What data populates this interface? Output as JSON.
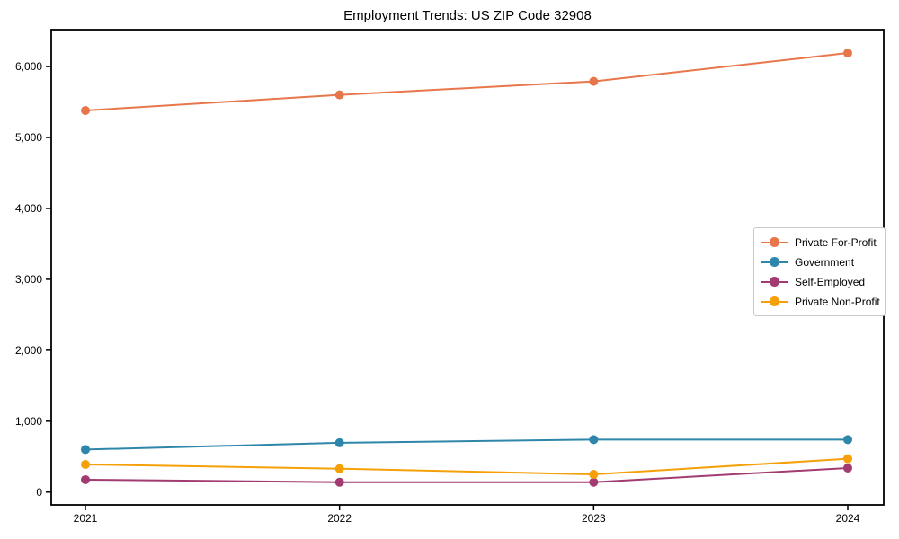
{
  "chart_data": {
    "type": "line",
    "title": "Employment Trends: US ZIP Code 32908",
    "categories": [
      "2021",
      "2022",
      "2023",
      "2024"
    ],
    "x": [
      2021,
      2022,
      2023,
      2024
    ],
    "series": [
      {
        "name": "Private For-Profit",
        "color": "#E8764B",
        "values": [
          5380,
          5600,
          5790,
          6190
        ]
      },
      {
        "name": "Government",
        "color": "#2E86AB",
        "values": [
          600,
          695,
          740,
          740
        ]
      },
      {
        "name": "Self-Employed",
        "color": "#A23B72",
        "values": [
          175,
          140,
          140,
          340
        ]
      },
      {
        "name": "Private Non-Profit",
        "color": "#F5A008",
        "values": [
          390,
          330,
          250,
          470
        ]
      }
    ],
    "xlabel": "",
    "ylabel": "",
    "ylim": [
      -180,
      6520
    ],
    "y_ticks": [
      0,
      1000,
      2000,
      3000,
      4000,
      5000,
      6000
    ],
    "y_tick_labels": [
      "0",
      "1,000",
      "2,000",
      "3,000",
      "4,000",
      "5,000",
      "6,000"
    ],
    "grid": false,
    "legend_position": "right",
    "marker": "circle",
    "axis_color": "#000000"
  }
}
